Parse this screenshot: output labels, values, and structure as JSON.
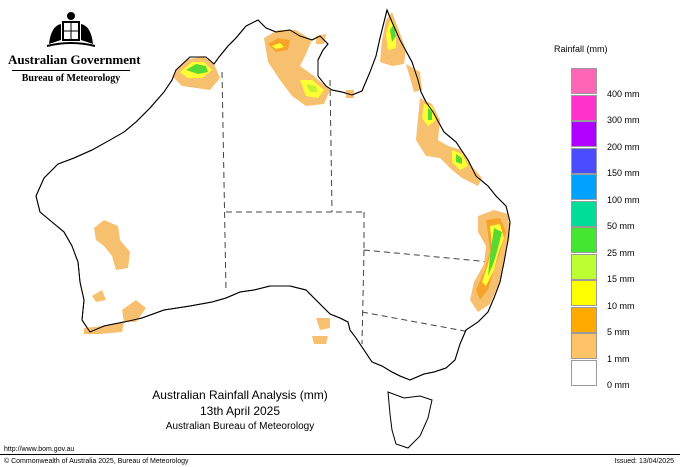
{
  "header": {
    "government": "Australian Government",
    "agency": "Bureau of Meteorology"
  },
  "legend": {
    "title": "Rainfall (mm)",
    "items": [
      {
        "label": "",
        "color": "#ff66b3"
      },
      {
        "label": "400 mm",
        "color": "#ff33cc"
      },
      {
        "label": "300 mm",
        "color": "#b000ff"
      },
      {
        "label": "200 mm",
        "color": "#4b4bff"
      },
      {
        "label": "150 mm",
        "color": "#00a2ff"
      },
      {
        "label": "100 mm",
        "color": "#00dd99"
      },
      {
        "label": "50 mm",
        "color": "#44e632"
      },
      {
        "label": "25 mm",
        "color": "#bbff33"
      },
      {
        "label": "15 mm",
        "color": "#ffff00"
      },
      {
        "label": "10 mm",
        "color": "#ffaa00"
      },
      {
        "label": "5 mm",
        "color": "#ffc266"
      },
      {
        "label": "1 mm",
        "color": "#ffffff"
      },
      {
        "label": "0 mm",
        "color": ""
      }
    ]
  },
  "title": {
    "line1": "Australian Rainfall Analysis (mm)",
    "line2": "13th April 2025",
    "line3": "Australian Bureau of Meteorology"
  },
  "footer": {
    "url": "http://www.bom.gov.au",
    "copyright": "© Commonwealth of Australia 2025, Bureau of Meteorology",
    "issued": "Issued: 13/04/2025"
  },
  "colors": {
    "rain_1mm": "#f7c06e",
    "rain_5mm": "#f6a32a",
    "rain_10mm": "#ffff33",
    "rain_15mm": "#c8f032",
    "rain_25mm": "#5ad832",
    "coast": "#000000",
    "border": "#444444"
  }
}
